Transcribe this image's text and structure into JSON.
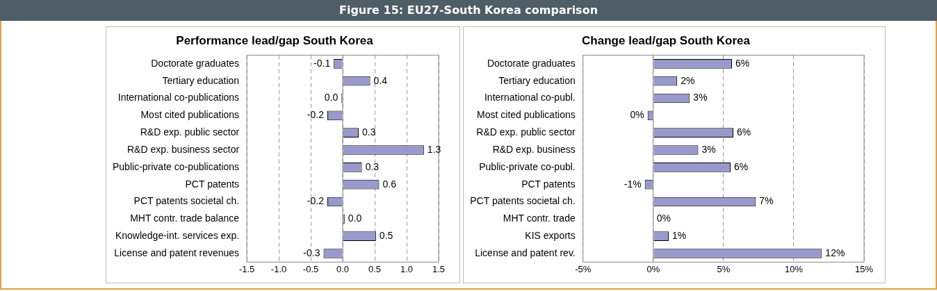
{
  "chart_data": [
    {
      "type": "bar",
      "orientation": "horizontal",
      "title": "Performance lead/gap South Korea",
      "annotations": [
        "Figure 15: EU27-South Korea comparison"
      ],
      "categories": [
        "Doctorate graduates",
        "Tertiary education",
        "International co-publications",
        "Most cited publications",
        "R&D exp. public sector",
        "R&D exp. business sector",
        "Public-private co-publications",
        "PCT patents",
        "PCT patents societal ch.",
        "MHT contr. trade balance",
        "Knowledge-int. services exp.",
        "License and patent revenues"
      ],
      "values": [
        -0.14,
        0.43,
        -0.02,
        -0.24,
        0.25,
        1.27,
        0.3,
        0.57,
        -0.24,
        0.03,
        0.52,
        -0.3
      ],
      "value_labels": [
        "-0.1",
        "0.4",
        "0.0",
        "-0.2",
        "0.3",
        "1.3",
        "0.3",
        "0.6",
        "-0.2",
        "0.0",
        "0.5",
        "-0.3"
      ],
      "color": "#9999cc",
      "xlim": [
        -1.5,
        1.5
      ],
      "xticks": [
        -1.5,
        {
          "value": -1,
          "label": "-1.0"
        },
        -0.5,
        {
          "value": 0,
          "label": "0.0"
        },
        0.5,
        {
          "value": 1,
          "label": "1.0"
        },
        1.5
      ],
      "grid": "x"
    },
    {
      "type": "bar",
      "orientation": "horizontal",
      "title": "Change lead/gap South Korea",
      "categories": [
        "Doctorate graduates",
        "Tertiary education",
        "International co-publ.",
        "Most cited publications",
        "R&D exp. public sector",
        "R&D exp. business",
        "Public-private co-publ.",
        "PCT patents",
        "PCT patents societal ch.",
        "MHT contr. trade",
        "KIS exports",
        "License and patent rev."
      ],
      "values": [
        5.6,
        1.7,
        2.6,
        -0.4,
        5.7,
        3.2,
        5.5,
        -0.6,
        7.3,
        0,
        1.1,
        12.0
      ],
      "value_labels": [
        "6%",
        "2%",
        "3%",
        "0%",
        "6%",
        "3%",
        "6%",
        "-1%",
        "7%",
        "0%",
        "1%",
        "12%"
      ],
      "color": "#9999cc",
      "xlim": [
        -5,
        15
      ],
      "xticks": [
        {
          "value": -5,
          "label": "-5%"
        },
        {
          "value": 0,
          "label": "0%"
        },
        {
          "value": 5,
          "label": "5%"
        },
        {
          "value": 10,
          "label": "10%"
        },
        {
          "value": 15,
          "label": "15%"
        }
      ],
      "grid": "x"
    }
  ]
}
